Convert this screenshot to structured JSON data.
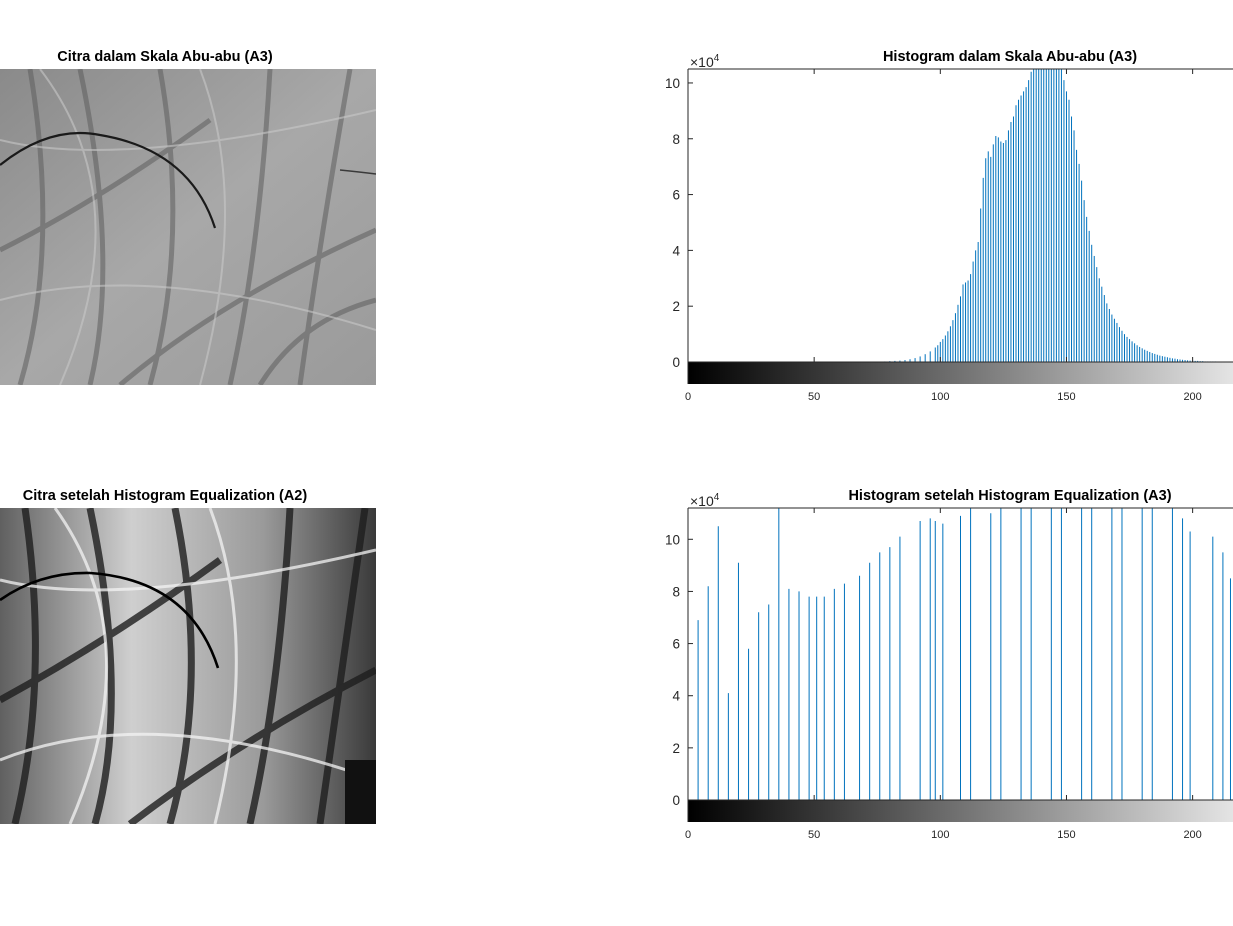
{
  "figure": {
    "background": "#ffffff",
    "bar_color": "#0072BD",
    "axis_color": "#262626"
  },
  "images": [
    {
      "title": "Citra dalam Skala Abu-abu (A3)"
    },
    {
      "title": "Citra setelah Histogram Equalization (A2)"
    }
  ],
  "chart_data": [
    {
      "type": "bar",
      "title": "Histogram dalam Skala Abu-abu (A3)",
      "xlabel": "",
      "ylabel": "",
      "y_exponent": "×10",
      "y_exponent_power": "4",
      "y_scale": 10000,
      "xlim": [
        0,
        216
      ],
      "ylim": [
        0,
        10.5
      ],
      "x_ticks": [
        "0",
        "50",
        "100",
        "150",
        "200"
      ],
      "x_tick_values": [
        0,
        50,
        100,
        150,
        200
      ],
      "y_ticks": [
        "0",
        "2",
        "4",
        "6",
        "8",
        "10"
      ],
      "y_tick_values": [
        0,
        2,
        4,
        6,
        8,
        10
      ],
      "colorbar": "gray",
      "x": [
        78,
        80,
        82,
        84,
        86,
        88,
        90,
        92,
        94,
        96,
        98,
        99,
        100,
        101,
        102,
        103,
        104,
        105,
        106,
        107,
        108,
        109,
        110,
        111,
        112,
        113,
        114,
        115,
        116,
        117,
        118,
        119,
        120,
        121,
        122,
        123,
        124,
        125,
        126,
        127,
        128,
        129,
        130,
        131,
        132,
        133,
        134,
        135,
        136,
        137,
        138,
        139,
        140,
        141,
        142,
        143,
        144,
        145,
        146,
        147,
        148,
        149,
        150,
        151,
        152,
        153,
        154,
        155,
        156,
        157,
        158,
        159,
        160,
        161,
        162,
        163,
        164,
        165,
        166,
        167,
        168,
        169,
        170,
        171,
        172,
        173,
        174,
        175,
        176,
        177,
        178,
        179,
        180,
        181,
        182,
        183,
        184,
        185,
        186,
        187,
        188,
        189,
        190,
        191,
        192,
        193,
        194,
        195,
        196,
        197,
        198,
        199,
        200,
        201,
        202,
        203,
        204,
        205,
        206,
        207,
        208,
        209,
        210,
        211,
        212,
        213,
        214,
        215,
        216
      ],
      "values": [
        0.02,
        0.03,
        0.04,
        0.05,
        0.07,
        0.1,
        0.14,
        0.2,
        0.28,
        0.38,
        0.52,
        0.6,
        0.72,
        0.82,
        0.95,
        1.1,
        1.28,
        1.5,
        1.75,
        2.05,
        2.35,
        2.78,
        2.85,
        2.92,
        3.15,
        3.6,
        4.0,
        4.3,
        5.5,
        6.6,
        7.3,
        7.55,
        7.35,
        7.8,
        8.1,
        8.05,
        7.9,
        7.85,
        7.95,
        8.3,
        8.6,
        8.8,
        9.2,
        9.4,
        9.55,
        9.7,
        9.85,
        10.1,
        10.4,
        10.6,
        10.8,
        10.9,
        10.95,
        10.98,
        10.99,
        11.0,
        10.95,
        10.9,
        10.88,
        10.7,
        10.5,
        10.1,
        9.7,
        9.4,
        8.8,
        8.3,
        7.6,
        7.1,
        6.5,
        5.8,
        5.2,
        4.7,
        4.2,
        3.8,
        3.4,
        3.0,
        2.7,
        2.4,
        2.1,
        1.9,
        1.7,
        1.55,
        1.4,
        1.25,
        1.12,
        1.0,
        0.9,
        0.82,
        0.74,
        0.67,
        0.6,
        0.54,
        0.49,
        0.44,
        0.4,
        0.36,
        0.32,
        0.29,
        0.26,
        0.23,
        0.21,
        0.19,
        0.17,
        0.15,
        0.13,
        0.12,
        0.1,
        0.09,
        0.08,
        0.07,
        0.06,
        0.05,
        0.05,
        0.04,
        0.04,
        0.03,
        0.03,
        0.02,
        0.02,
        0.02,
        0.02,
        0.02,
        0.01,
        0.01,
        0.01,
        0.01,
        0.01,
        0.01,
        0.01
      ]
    },
    {
      "type": "bar",
      "title": "Histogram setelah Histogram Equalization (A3)",
      "xlabel": "",
      "ylabel": "",
      "y_exponent": "×10",
      "y_exponent_power": "4",
      "y_scale": 10000,
      "xlim": [
        0,
        216
      ],
      "ylim": [
        0,
        11.2
      ],
      "x_ticks": [
        "0",
        "50",
        "100",
        "150",
        "200"
      ],
      "x_tick_values": [
        0,
        50,
        100,
        150,
        200
      ],
      "y_ticks": [
        "0",
        "2",
        "4",
        "6",
        "8",
        "10"
      ],
      "y_tick_values": [
        0,
        2,
        4,
        6,
        8,
        10
      ],
      "colorbar": "gray",
      "x": [
        4,
        8,
        12,
        16,
        20,
        24,
        28,
        32,
        36,
        40,
        44,
        48,
        51,
        54,
        58,
        62,
        68,
        72,
        76,
        80,
        84,
        92,
        96,
        98,
        101,
        108,
        112,
        120,
        124,
        132,
        136,
        144,
        148,
        156,
        160,
        168,
        172,
        180,
        184,
        192,
        196,
        199,
        208,
        212,
        215
      ],
      "values": [
        6.9,
        8.2,
        10.5,
        4.1,
        9.1,
        5.8,
        7.2,
        7.5,
        11.2,
        8.1,
        8.0,
        7.8,
        7.8,
        7.8,
        8.1,
        8.3,
        8.6,
        9.1,
        9.5,
        9.7,
        10.1,
        10.7,
        10.8,
        10.7,
        10.6,
        10.9,
        11.2,
        11.0,
        11.2,
        11.2,
        11.2,
        11.2,
        11.2,
        11.2,
        11.2,
        11.2,
        11.2,
        11.2,
        11.2,
        11.2,
        10.8,
        10.3,
        10.1,
        9.5,
        8.5
      ]
    }
  ]
}
